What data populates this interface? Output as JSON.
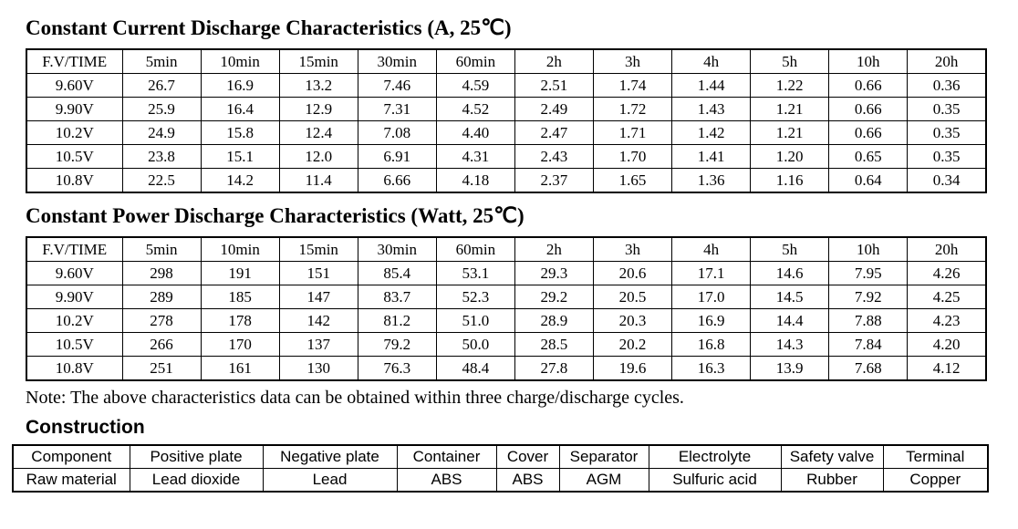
{
  "colors": {
    "text": "#000000",
    "background": "#ffffff",
    "border": "#000000"
  },
  "current_table": {
    "title": "Constant Current Discharge Characteristics (A, 25℃)",
    "headers": [
      "F.V/TIME",
      "5min",
      "10min",
      "15min",
      "30min",
      "60min",
      "2h",
      "3h",
      "4h",
      "5h",
      "10h",
      "20h"
    ],
    "rows": [
      [
        "9.60V",
        "26.7",
        "16.9",
        "13.2",
        "7.46",
        "4.59",
        "2.51",
        "1.74",
        "1.44",
        "1.22",
        "0.66",
        "0.36"
      ],
      [
        "9.90V",
        "25.9",
        "16.4",
        "12.9",
        "7.31",
        "4.52",
        "2.49",
        "1.72",
        "1.43",
        "1.21",
        "0.66",
        "0.35"
      ],
      [
        "10.2V",
        "24.9",
        "15.8",
        "12.4",
        "7.08",
        "4.40",
        "2.47",
        "1.71",
        "1.42",
        "1.21",
        "0.66",
        "0.35"
      ],
      [
        "10.5V",
        "23.8",
        "15.1",
        "12.0",
        "6.91",
        "4.31",
        "2.43",
        "1.70",
        "1.41",
        "1.20",
        "0.65",
        "0.35"
      ],
      [
        "10.8V",
        "22.5",
        "14.2",
        "11.4",
        "6.66",
        "4.18",
        "2.37",
        "1.65",
        "1.36",
        "1.16",
        "0.64",
        "0.34"
      ]
    ]
  },
  "power_table": {
    "title": "Constant Power Discharge Characteristics (Watt, 25℃)",
    "headers": [
      "F.V/TIME",
      "5min",
      "10min",
      "15min",
      "30min",
      "60min",
      "2h",
      "3h",
      "4h",
      "5h",
      "10h",
      "20h"
    ],
    "rows": [
      [
        "9.60V",
        "298",
        "191",
        "151",
        "85.4",
        "53.1",
        "29.3",
        "20.6",
        "17.1",
        "14.6",
        "7.95",
        "4.26"
      ],
      [
        "9.90V",
        "289",
        "185",
        "147",
        "83.7",
        "52.3",
        "29.2",
        "20.5",
        "17.0",
        "14.5",
        "7.92",
        "4.25"
      ],
      [
        "10.2V",
        "278",
        "178",
        "142",
        "81.2",
        "51.0",
        "28.9",
        "20.3",
        "16.9",
        "14.4",
        "7.88",
        "4.23"
      ],
      [
        "10.5V",
        "266",
        "170",
        "137",
        "79.2",
        "50.0",
        "28.5",
        "20.2",
        "16.8",
        "14.3",
        "7.84",
        "4.20"
      ],
      [
        "10.8V",
        "251",
        "161",
        "130",
        "76.3",
        "48.4",
        "27.8",
        "19.6",
        "16.3",
        "13.9",
        "7.68",
        "4.12"
      ]
    ]
  },
  "note": "Note: The above characteristics data can be obtained within three charge/discharge cycles.",
  "construction": {
    "title": "Construction",
    "headers": [
      "Component",
      "Positive plate",
      "Negative plate",
      "Container",
      "Cover",
      "Separator",
      "Electrolyte",
      "Safety valve",
      "Terminal"
    ],
    "rows": [
      [
        "Raw material",
        "Lead dioxide",
        "Lead",
        "ABS",
        "ABS",
        "AGM",
        "Sulfuric acid",
        "Rubber",
        "Copper"
      ]
    ]
  }
}
